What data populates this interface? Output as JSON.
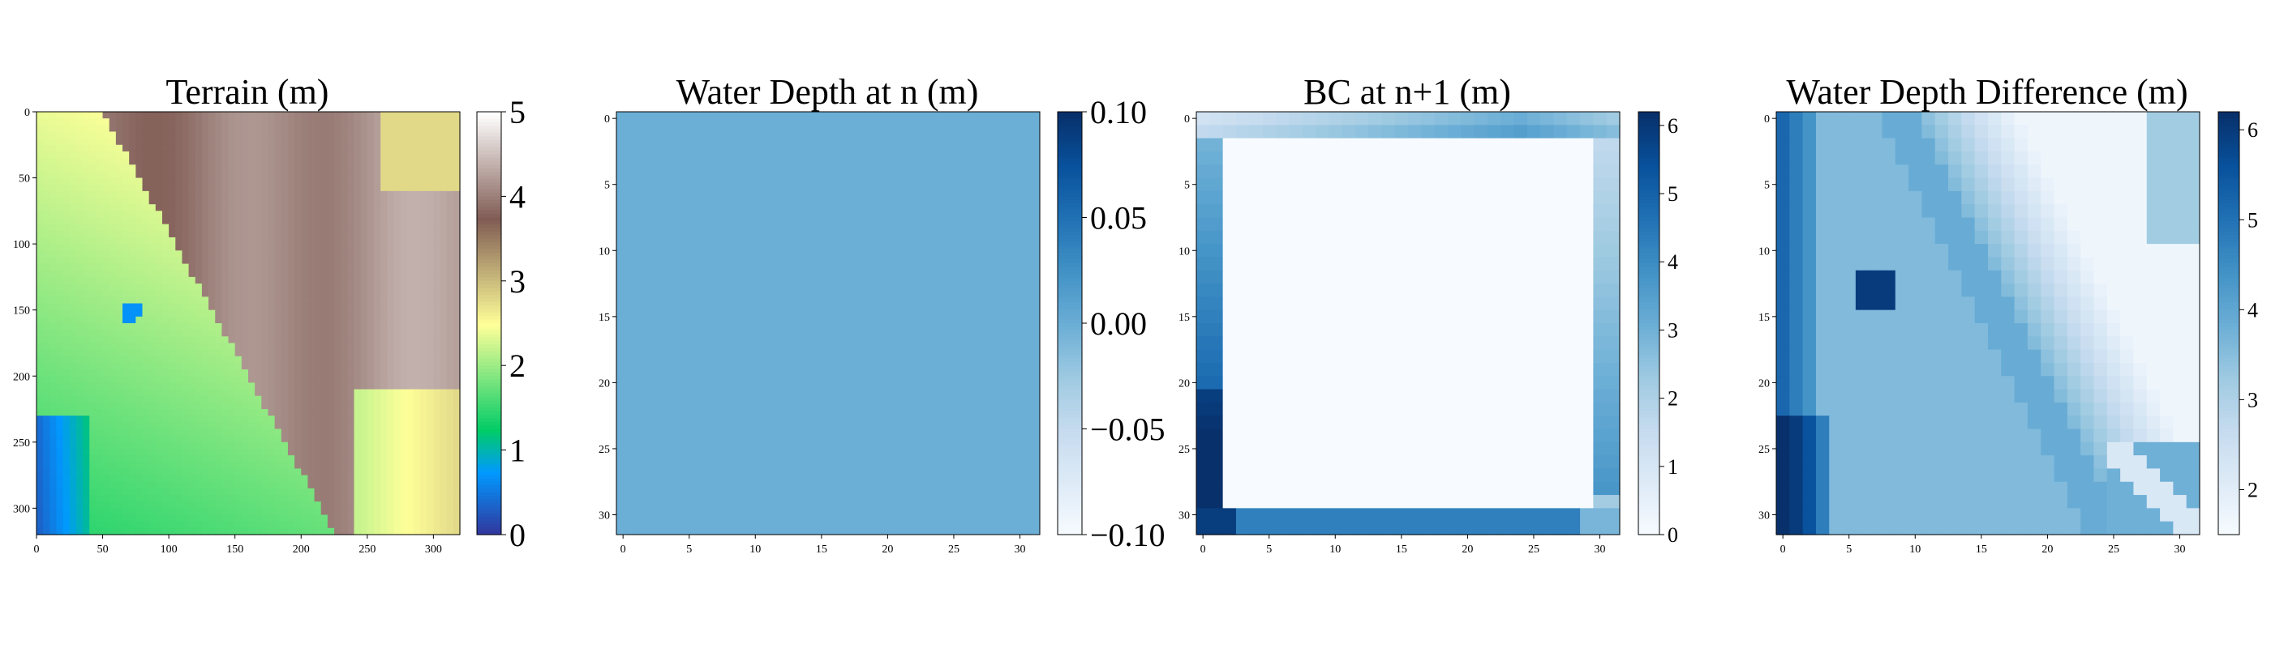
{
  "chart_data": [
    {
      "type": "heatmap",
      "title": "Terrain (m)",
      "colormap": "terrain",
      "grid": false,
      "x_ticks": [
        0,
        50,
        100,
        150,
        200,
        250,
        300
      ],
      "y_ticks": [
        0,
        50,
        100,
        150,
        200,
        250,
        300
      ],
      "xlim": [
        0,
        320
      ],
      "ylim": [
        320,
        0
      ],
      "colorbar": {
        "min": 0,
        "max": 5,
        "ticks": [
          0,
          1,
          2,
          3,
          4,
          5
        ]
      },
      "notes": "Elevation map: high brown/grey plateau upper-right, green-yellow lowland band through centre, blue depression lower-left, small pit near (72,152)."
    },
    {
      "type": "heatmap",
      "title": "Water Depth at n (m)",
      "colormap": "Blues",
      "grid": false,
      "x_ticks": [
        0,
        5,
        10,
        15,
        20,
        25,
        30
      ],
      "y_ticks": [
        0,
        5,
        10,
        15,
        20,
        25,
        30
      ],
      "xlim": [
        -0.5,
        31.5
      ],
      "ylim": [
        31.5,
        -0.5
      ],
      "uniform_value": 0.0,
      "colorbar": {
        "min": -0.1,
        "max": 0.1,
        "ticks": [
          "0.10",
          "0.05",
          "0.00",
          "−0.05",
          "−0.10"
        ]
      }
    },
    {
      "type": "heatmap",
      "title": "BC at n+1 (m)",
      "colormap": "Blues",
      "grid": false,
      "x_ticks": [
        0,
        5,
        10,
        15,
        20,
        25,
        30
      ],
      "y_ticks": [
        0,
        5,
        10,
        15,
        20,
        25,
        30
      ],
      "xlim": [
        -0.5,
        31.5
      ],
      "ylim": [
        31.5,
        -0.5
      ],
      "interior_value": 0,
      "boundary": {
        "top_rows": 2,
        "bottom_rows": 2,
        "left_cols": 2,
        "right_cols": 2
      },
      "colorbar": {
        "min": 0,
        "max": 6.2,
        "ticks": [
          0,
          1,
          2,
          3,
          4,
          5,
          6
        ]
      }
    },
    {
      "type": "heatmap",
      "title": "Water Depth Difference (m)",
      "colormap": "Blues",
      "grid": false,
      "x_ticks": [
        0,
        5,
        10,
        15,
        20,
        25,
        30
      ],
      "y_ticks": [
        0,
        5,
        10,
        15,
        20,
        25,
        30
      ],
      "xlim": [
        -0.5,
        31.5
      ],
      "ylim": [
        31.5,
        -0.5
      ],
      "colorbar": {
        "min": 1.5,
        "max": 6.2,
        "ticks": [
          2,
          3,
          4,
          5,
          6
        ]
      }
    }
  ]
}
